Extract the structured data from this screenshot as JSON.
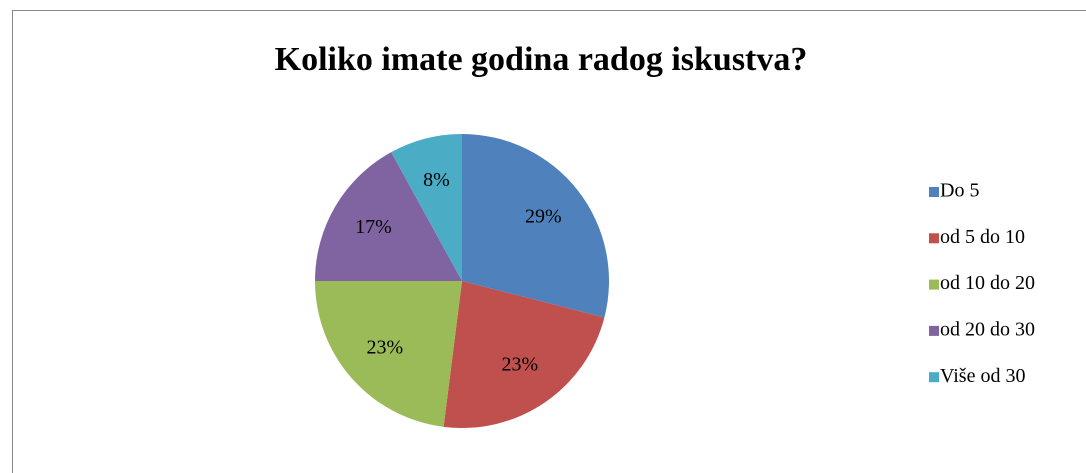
{
  "chart_data": {
    "type": "pie",
    "title": "Koliko imate godina radog iskustva?",
    "categories": [
      "Do 5",
      "od 5 do 10",
      "od 10 do 20",
      "od 20 do 30",
      "Više od 30"
    ],
    "values": [
      29,
      23,
      23,
      17,
      8
    ],
    "value_labels": [
      "29%",
      "23%",
      "23%",
      "17%",
      "8%"
    ],
    "colors": [
      "#4f81bd",
      "#c0504d",
      "#9bbb59",
      "#8064a2",
      "#4bacc6"
    ],
    "legend": "right"
  }
}
